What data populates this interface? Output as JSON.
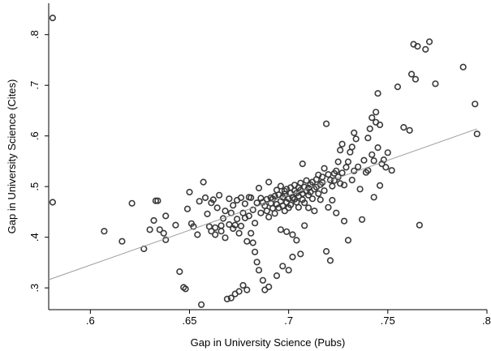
{
  "chart_data": {
    "type": "scatter",
    "title": "",
    "xlabel": "Gap in University Science (Pubs)",
    "ylabel": "Gap in University Science (Cites)",
    "xlim": [
      0.579,
      0.8
    ],
    "ylim": [
      0.257,
      0.862
    ],
    "x_ticks": [
      0.6,
      0.65,
      0.7,
      0.75,
      0.8
    ],
    "x_tick_labels": [
      ".6",
      ".65",
      ".7",
      ".75",
      ".8"
    ],
    "y_ticks": [
      0.3,
      0.4,
      0.5,
      0.6,
      0.7,
      0.8
    ],
    "y_tick_labels": [
      ".3",
      ".4",
      ".5",
      ".6",
      ".7",
      ".8"
    ],
    "grid": false,
    "legend": "none",
    "colors": {
      "marker": "#3a3a3a",
      "fit_line": "#9a9a9a",
      "axis": "#000000"
    },
    "fit_line": {
      "x": [
        0.579,
        0.795
      ],
      "y": [
        0.316,
        0.614
      ]
    },
    "points": [
      [
        0.581,
        0.833
      ],
      [
        0.581,
        0.469
      ],
      [
        0.607,
        0.412
      ],
      [
        0.616,
        0.392
      ],
      [
        0.621,
        0.467
      ],
      [
        0.627,
        0.377
      ],
      [
        0.63,
        0.415
      ],
      [
        0.632,
        0.433
      ],
      [
        0.633,
        0.472
      ],
      [
        0.634,
        0.472
      ],
      [
        0.635,
        0.415
      ],
      [
        0.637,
        0.408
      ],
      [
        0.638,
        0.395
      ],
      [
        0.638,
        0.442
      ],
      [
        0.643,
        0.424
      ],
      [
        0.645,
        0.332
      ],
      [
        0.647,
        0.301
      ],
      [
        0.648,
        0.298
      ],
      [
        0.649,
        0.456
      ],
      [
        0.65,
        0.489
      ],
      [
        0.651,
        0.427
      ],
      [
        0.652,
        0.421
      ],
      [
        0.654,
        0.405
      ],
      [
        0.655,
        0.471
      ],
      [
        0.656,
        0.267
      ],
      [
        0.657,
        0.509
      ],
      [
        0.658,
        0.478
      ],
      [
        0.659,
        0.446
      ],
      [
        0.66,
        0.421
      ],
      [
        0.661,
        0.468
      ],
      [
        0.661,
        0.412
      ],
      [
        0.662,
        0.474
      ],
      [
        0.663,
        0.419
      ],
      [
        0.663,
        0.405
      ],
      [
        0.664,
        0.458
      ],
      [
        0.665,
        0.483
      ],
      [
        0.666,
        0.423
      ],
      [
        0.666,
        0.412
      ],
      [
        0.667,
        0.437
      ],
      [
        0.668,
        0.452
      ],
      [
        0.668,
        0.399
      ],
      [
        0.669,
        0.278
      ],
      [
        0.67,
        0.425
      ],
      [
        0.67,
        0.476
      ],
      [
        0.671,
        0.448
      ],
      [
        0.671,
        0.28
      ],
      [
        0.672,
        0.417
      ],
      [
        0.672,
        0.463
      ],
      [
        0.673,
        0.424
      ],
      [
        0.673,
        0.288
      ],
      [
        0.674,
        0.473
      ],
      [
        0.674,
        0.436
      ],
      [
        0.675,
        0.408
      ],
      [
        0.675,
        0.293
      ],
      [
        0.676,
        0.478
      ],
      [
        0.676,
        0.422
      ],
      [
        0.677,
        0.448
      ],
      [
        0.677,
        0.305
      ],
      [
        0.678,
        0.466
      ],
      [
        0.678,
        0.438
      ],
      [
        0.679,
        0.392
      ],
      [
        0.679,
        0.296
      ],
      [
        0.68,
        0.479
      ],
      [
        0.68,
        0.442
      ],
      [
        0.681,
        0.408
      ],
      [
        0.681,
        0.478
      ],
      [
        0.682,
        0.389
      ],
      [
        0.682,
        0.454
      ],
      [
        0.683,
        0.371
      ],
      [
        0.683,
        0.428
      ],
      [
        0.684,
        0.468
      ],
      [
        0.684,
        0.351
      ],
      [
        0.685,
        0.497
      ],
      [
        0.685,
        0.335
      ],
      [
        0.686,
        0.477
      ],
      [
        0.686,
        0.448
      ],
      [
        0.687,
        0.315
      ],
      [
        0.687,
        0.469
      ],
      [
        0.688,
        0.462
      ],
      [
        0.688,
        0.296
      ],
      [
        0.689,
        0.475
      ],
      [
        0.689,
        0.452
      ],
      [
        0.69,
        0.509
      ],
      [
        0.69,
        0.44
      ],
      [
        0.69,
        0.302
      ],
      [
        0.691,
        0.467
      ],
      [
        0.691,
        0.478
      ],
      [
        0.692,
        0.457
      ],
      [
        0.692,
        0.476
      ],
      [
        0.693,
        0.447
      ],
      [
        0.693,
        0.481
      ],
      [
        0.694,
        0.465
      ],
      [
        0.694,
        0.493
      ],
      [
        0.694,
        0.324
      ],
      [
        0.695,
        0.458
      ],
      [
        0.695,
        0.484
      ],
      [
        0.696,
        0.471
      ],
      [
        0.696,
        0.501
      ],
      [
        0.696,
        0.415
      ],
      [
        0.697,
        0.462
      ],
      [
        0.697,
        0.479
      ],
      [
        0.697,
        0.343
      ],
      [
        0.698,
        0.485
      ],
      [
        0.698,
        0.452
      ],
      [
        0.698,
        0.491
      ],
      [
        0.699,
        0.469
      ],
      [
        0.699,
        0.411
      ],
      [
        0.699,
        0.495
      ],
      [
        0.7,
        0.476
      ],
      [
        0.7,
        0.458
      ],
      [
        0.7,
        0.335
      ],
      [
        0.701,
        0.487
      ],
      [
        0.701,
        0.498
      ],
      [
        0.701,
        0.464
      ],
      [
        0.702,
        0.478
      ],
      [
        0.702,
        0.405
      ],
      [
        0.702,
        0.361
      ],
      [
        0.703,
        0.492
      ],
      [
        0.703,
        0.475
      ],
      [
        0.703,
        0.503
      ],
      [
        0.704,
        0.469
      ],
      [
        0.704,
        0.487
      ],
      [
        0.704,
        0.394
      ],
      [
        0.705,
        0.498
      ],
      [
        0.705,
        0.481
      ],
      [
        0.705,
        0.459
      ],
      [
        0.706,
        0.493
      ],
      [
        0.706,
        0.507
      ],
      [
        0.706,
        0.367
      ],
      [
        0.707,
        0.486
      ],
      [
        0.707,
        0.474
      ],
      [
        0.707,
        0.545
      ],
      [
        0.708,
        0.499
      ],
      [
        0.708,
        0.468
      ],
      [
        0.708,
        0.423
      ],
      [
        0.709,
        0.491
      ],
      [
        0.709,
        0.512
      ],
      [
        0.71,
        0.483
      ],
      [
        0.71,
        0.497
      ],
      [
        0.71,
        0.458
      ],
      [
        0.711,
        0.504
      ],
      [
        0.711,
        0.489
      ],
      [
        0.712,
        0.476
      ],
      [
        0.712,
        0.509
      ],
      [
        0.713,
        0.495
      ],
      [
        0.713,
        0.452
      ],
      [
        0.714,
        0.514
      ],
      [
        0.714,
        0.499
      ],
      [
        0.715,
        0.523
      ],
      [
        0.715,
        0.486
      ],
      [
        0.716,
        0.504
      ],
      [
        0.716,
        0.474
      ],
      [
        0.717,
        0.519
      ],
      [
        0.717,
        0.508
      ],
      [
        0.718,
        0.492
      ],
      [
        0.718,
        0.536
      ],
      [
        0.719,
        0.372
      ],
      [
        0.719,
        0.624
      ],
      [
        0.72,
        0.459
      ],
      [
        0.72,
        0.524
      ],
      [
        0.721,
        0.513
      ],
      [
        0.721,
        0.354
      ],
      [
        0.722,
        0.501
      ],
      [
        0.722,
        0.473
      ],
      [
        0.723,
        0.526
      ],
      [
        0.723,
        0.512
      ],
      [
        0.724,
        0.448
      ],
      [
        0.724,
        0.531
      ],
      [
        0.725,
        0.519
      ],
      [
        0.725,
        0.549
      ],
      [
        0.726,
        0.572
      ],
      [
        0.726,
        0.506
      ],
      [
        0.727,
        0.584
      ],
      [
        0.727,
        0.527
      ],
      [
        0.728,
        0.432
      ],
      [
        0.728,
        0.503
      ],
      [
        0.729,
        0.538
      ],
      [
        0.73,
        0.394
      ],
      [
        0.73,
        0.549
      ],
      [
        0.731,
        0.568
      ],
      [
        0.732,
        0.578
      ],
      [
        0.732,
        0.513
      ],
      [
        0.733,
        0.606
      ],
      [
        0.733,
        0.531
      ],
      [
        0.734,
        0.594
      ],
      [
        0.735,
        0.539
      ],
      [
        0.736,
        0.495
      ],
      [
        0.737,
        0.435
      ],
      [
        0.738,
        0.552
      ],
      [
        0.739,
        0.528
      ],
      [
        0.74,
        0.596
      ],
      [
        0.74,
        0.532
      ],
      [
        0.741,
        0.614
      ],
      [
        0.742,
        0.563
      ],
      [
        0.742,
        0.636
      ],
      [
        0.743,
        0.479
      ],
      [
        0.743,
        0.551
      ],
      [
        0.744,
        0.647
      ],
      [
        0.744,
        0.627
      ],
      [
        0.745,
        0.577
      ],
      [
        0.745,
        0.684
      ],
      [
        0.746,
        0.502
      ],
      [
        0.746,
        0.622
      ],
      [
        0.747,
        0.545
      ],
      [
        0.748,
        0.553
      ],
      [
        0.749,
        0.538
      ],
      [
        0.75,
        0.567
      ],
      [
        0.752,
        0.532
      ],
      [
        0.755,
        0.697
      ],
      [
        0.758,
        0.617
      ],
      [
        0.761,
        0.611
      ],
      [
        0.762,
        0.722
      ],
      [
        0.763,
        0.781
      ],
      [
        0.764,
        0.712
      ],
      [
        0.765,
        0.777
      ],
      [
        0.766,
        0.424
      ],
      [
        0.769,
        0.771
      ],
      [
        0.771,
        0.786
      ],
      [
        0.774,
        0.703
      ],
      [
        0.788,
        0.736
      ],
      [
        0.794,
        0.663
      ],
      [
        0.795,
        0.604
      ]
    ]
  }
}
